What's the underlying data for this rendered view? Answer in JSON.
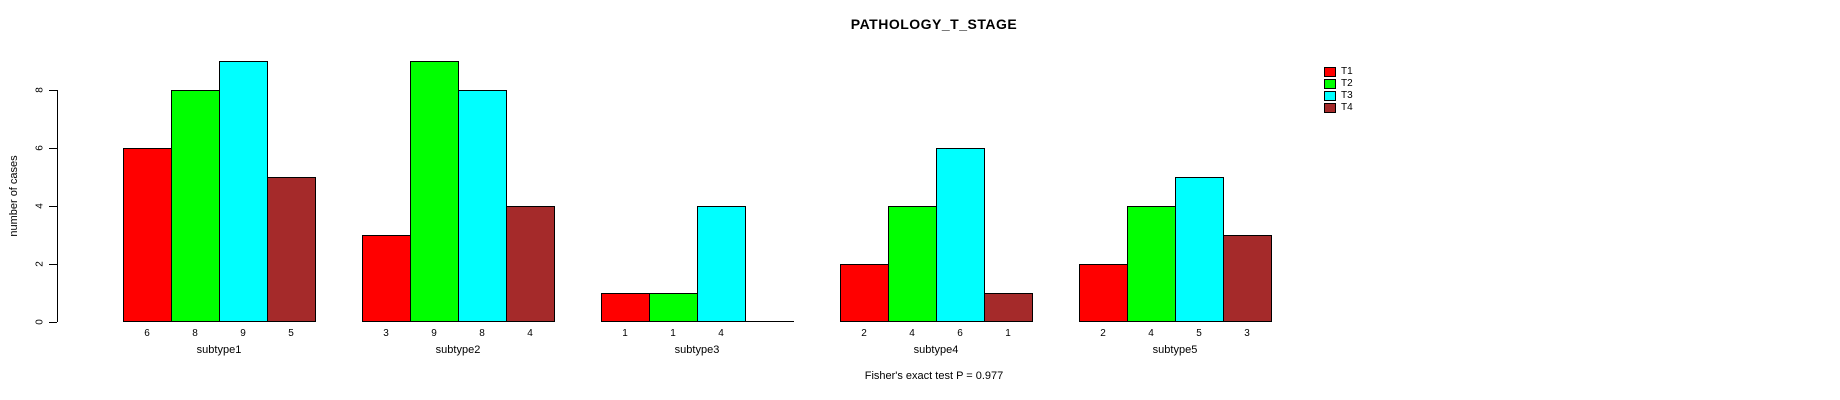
{
  "title": "PATHOLOGY_T_STAGE",
  "y_axis_label": "number of cases",
  "footer": "Fisher's exact test P = 0.977",
  "chart_data": {
    "type": "bar",
    "title": "PATHOLOGY_T_STAGE",
    "xlabel": "",
    "ylabel": "number of cases",
    "categories": [
      "subtype1",
      "subtype2",
      "subtype3",
      "subtype4",
      "subtype5"
    ],
    "series": [
      {
        "name": "T1",
        "color": "#FF0000",
        "values": [
          6,
          3,
          1,
          2,
          2
        ]
      },
      {
        "name": "T2",
        "color": "#00FF00",
        "values": [
          8,
          9,
          1,
          4,
          4
        ]
      },
      {
        "name": "T3",
        "color": "#00FFFF",
        "values": [
          9,
          8,
          4,
          6,
          5
        ]
      },
      {
        "name": "T4",
        "color": "#A52A2A",
        "values": [
          5,
          4,
          0,
          1,
          3
        ]
      }
    ],
    "bar_value_labels": [
      [
        "6",
        "8",
        "9",
        "5"
      ],
      [
        "3",
        "9",
        "8",
        "4"
      ],
      [
        "1",
        "1",
        "4",
        ""
      ],
      [
        "2",
        "4",
        "6",
        "1"
      ],
      [
        "2",
        "4",
        "5",
        "3"
      ]
    ],
    "yticks": [
      0,
      2,
      4,
      6,
      8
    ],
    "ylim": [
      0,
      9
    ],
    "grid": false,
    "legend_position": "top-right",
    "legend_entries": [
      "T1",
      "T2",
      "T3",
      "T4"
    ],
    "annotation": "Fisher's exact test P = 0.977"
  }
}
